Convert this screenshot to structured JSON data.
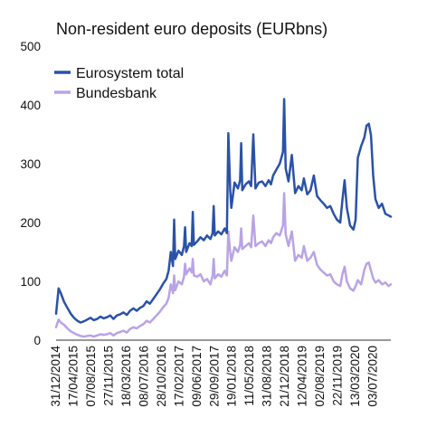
{
  "chart_data": {
    "type": "line",
    "title": "Non-resident euro deposits (EURbns)",
    "xlabel": "",
    "ylabel": "",
    "ylim": [
      0,
      500
    ],
    "yticks": [
      0,
      100,
      200,
      300,
      400,
      500
    ],
    "grid": false,
    "legend_position": "top-left",
    "xtick_labels": [
      "31/12/2014",
      "17/04/2015",
      "07/08/2015",
      "27/11/2015",
      "18/03/2016",
      "08/07/2016",
      "28/10/2016",
      "17/02/2017",
      "09/06/2017",
      "29/09/2017",
      "19/01/2018",
      "11/05/2018",
      "31/08/2018",
      "21/12/2018",
      "12/04/2019",
      "02/08/2019",
      "22/11/2019",
      "13/03/2020",
      "03/07/2020"
    ],
    "x_range": [
      "2014-12-31",
      "2020-10-30"
    ],
    "series": [
      {
        "name": "Eurosystem total",
        "color": "#2a52a8",
        "points": [
          [
            "2014-12-31",
            45
          ],
          [
            "2015-01-16",
            88
          ],
          [
            "2015-01-30",
            80
          ],
          [
            "2015-02-20",
            65
          ],
          [
            "2015-03-13",
            55
          ],
          [
            "2015-04-03",
            45
          ],
          [
            "2015-04-24",
            38
          ],
          [
            "2015-05-15",
            33
          ],
          [
            "2015-06-05",
            30
          ],
          [
            "2015-06-26",
            32
          ],
          [
            "2015-07-17",
            35
          ],
          [
            "2015-08-07",
            38
          ],
          [
            "2015-08-28",
            34
          ],
          [
            "2015-09-18",
            36
          ],
          [
            "2015-10-09",
            40
          ],
          [
            "2015-10-30",
            37
          ],
          [
            "2015-11-20",
            39
          ],
          [
            "2015-12-11",
            42
          ],
          [
            "2015-12-31",
            36
          ],
          [
            "2016-01-22",
            42
          ],
          [
            "2016-02-12",
            44
          ],
          [
            "2016-03-04",
            47
          ],
          [
            "2016-03-25",
            43
          ],
          [
            "2016-04-15",
            50
          ],
          [
            "2016-05-06",
            54
          ],
          [
            "2016-05-27",
            50
          ],
          [
            "2016-06-17",
            55
          ],
          [
            "2016-07-08",
            58
          ],
          [
            "2016-07-29",
            66
          ],
          [
            "2016-08-19",
            62
          ],
          [
            "2016-09-09",
            70
          ],
          [
            "2016-09-30",
            78
          ],
          [
            "2016-10-21",
            86
          ],
          [
            "2016-11-11",
            96
          ],
          [
            "2016-12-02",
            104
          ],
          [
            "2016-12-16",
            118
          ],
          [
            "2016-12-30",
            150
          ],
          [
            "2017-01-13",
            126
          ],
          [
            "2017-01-20",
            205
          ],
          [
            "2017-01-27",
            138
          ],
          [
            "2017-02-17",
            152
          ],
          [
            "2017-03-10",
            145
          ],
          [
            "2017-03-24",
            160
          ],
          [
            "2017-03-31",
            192
          ],
          [
            "2017-04-07",
            150
          ],
          [
            "2017-04-28",
            165
          ],
          [
            "2017-05-12",
            160
          ],
          [
            "2017-05-19",
            218
          ],
          [
            "2017-05-26",
            162
          ],
          [
            "2017-06-16",
            168
          ],
          [
            "2017-07-07",
            175
          ],
          [
            "2017-07-28",
            170
          ],
          [
            "2017-08-18",
            178
          ],
          [
            "2017-09-08",
            172
          ],
          [
            "2017-09-22",
            182
          ],
          [
            "2017-09-29",
            228
          ],
          [
            "2017-10-06",
            178
          ],
          [
            "2017-10-27",
            185
          ],
          [
            "2017-11-17",
            180
          ],
          [
            "2017-12-08",
            190
          ],
          [
            "2017-12-22",
            182
          ],
          [
            "2017-12-31",
            352
          ],
          [
            "2018-01-12",
            255
          ],
          [
            "2018-01-19",
            225
          ],
          [
            "2018-02-09",
            268
          ],
          [
            "2018-03-02",
            258
          ],
          [
            "2018-03-16",
            272
          ],
          [
            "2018-03-23",
            335
          ],
          [
            "2018-03-30",
            255
          ],
          [
            "2018-04-20",
            265
          ],
          [
            "2018-05-11",
            270
          ],
          [
            "2018-05-25",
            262
          ],
          [
            "2018-06-08",
            350
          ],
          [
            "2018-06-22",
            258
          ],
          [
            "2018-07-13",
            268
          ],
          [
            "2018-08-03",
            270
          ],
          [
            "2018-08-24",
            262
          ],
          [
            "2018-09-14",
            272
          ],
          [
            "2018-09-28",
            265
          ],
          [
            "2018-10-12",
            280
          ],
          [
            "2018-11-02",
            290
          ],
          [
            "2018-11-23",
            300
          ],
          [
            "2018-12-14",
            320
          ],
          [
            "2018-12-21",
            410
          ],
          [
            "2018-12-31",
            292
          ],
          [
            "2019-01-18",
            270
          ],
          [
            "2019-02-08",
            315
          ],
          [
            "2019-03-01",
            250
          ],
          [
            "2019-03-22",
            262
          ],
          [
            "2019-04-12",
            255
          ],
          [
            "2019-04-26",
            275
          ],
          [
            "2019-05-17",
            248
          ],
          [
            "2019-06-07",
            255
          ],
          [
            "2019-06-28",
            280
          ],
          [
            "2019-07-19",
            245
          ],
          [
            "2019-08-09",
            238
          ],
          [
            "2019-08-30",
            232
          ],
          [
            "2019-09-20",
            225
          ],
          [
            "2019-10-11",
            228
          ],
          [
            "2019-11-01",
            215
          ],
          [
            "2019-11-22",
            205
          ],
          [
            "2019-12-13",
            200
          ],
          [
            "2019-12-27",
            238
          ],
          [
            "2020-01-10",
            272
          ],
          [
            "2020-01-24",
            225
          ],
          [
            "2020-02-14",
            195
          ],
          [
            "2020-03-06",
            188
          ],
          [
            "2020-03-20",
            205
          ],
          [
            "2020-04-03",
            310
          ],
          [
            "2020-04-24",
            330
          ],
          [
            "2020-05-15",
            345
          ],
          [
            "2020-05-29",
            365
          ],
          [
            "2020-06-12",
            368
          ],
          [
            "2020-06-26",
            348
          ],
          [
            "2020-07-10",
            280
          ],
          [
            "2020-07-24",
            240
          ],
          [
            "2020-08-14",
            225
          ],
          [
            "2020-09-04",
            232
          ],
          [
            "2020-09-25",
            215
          ],
          [
            "2020-10-16",
            212
          ],
          [
            "2020-10-30",
            210
          ]
        ]
      },
      {
        "name": "Bundesbank",
        "color": "#b9a3e6",
        "points": [
          [
            "2014-12-31",
            22
          ],
          [
            "2015-01-16",
            35
          ],
          [
            "2015-01-30",
            30
          ],
          [
            "2015-02-20",
            26
          ],
          [
            "2015-03-13",
            20
          ],
          [
            "2015-04-03",
            15
          ],
          [
            "2015-04-24",
            12
          ],
          [
            "2015-05-15",
            9
          ],
          [
            "2015-06-05",
            7
          ],
          [
            "2015-06-26",
            6
          ],
          [
            "2015-07-17",
            7
          ],
          [
            "2015-08-07",
            8
          ],
          [
            "2015-08-28",
            6
          ],
          [
            "2015-09-18",
            8
          ],
          [
            "2015-10-09",
            10
          ],
          [
            "2015-10-30",
            9
          ],
          [
            "2015-11-20",
            10
          ],
          [
            "2015-12-11",
            12
          ],
          [
            "2015-12-31",
            8
          ],
          [
            "2016-01-22",
            12
          ],
          [
            "2016-02-12",
            14
          ],
          [
            "2016-03-04",
            16
          ],
          [
            "2016-03-25",
            13
          ],
          [
            "2016-04-15",
            19
          ],
          [
            "2016-05-06",
            22
          ],
          [
            "2016-05-27",
            20
          ],
          [
            "2016-06-17",
            24
          ],
          [
            "2016-07-08",
            27
          ],
          [
            "2016-07-29",
            33
          ],
          [
            "2016-08-19",
            30
          ],
          [
            "2016-09-09",
            36
          ],
          [
            "2016-09-30",
            42
          ],
          [
            "2016-10-21",
            48
          ],
          [
            "2016-11-11",
            56
          ],
          [
            "2016-12-02",
            62
          ],
          [
            "2016-12-16",
            72
          ],
          [
            "2016-12-30",
            95
          ],
          [
            "2017-01-13",
            80
          ],
          [
            "2017-01-20",
            110
          ],
          [
            "2017-01-27",
            85
          ],
          [
            "2017-02-17",
            100
          ],
          [
            "2017-03-10",
            95
          ],
          [
            "2017-03-24",
            108
          ],
          [
            "2017-03-31",
            130
          ],
          [
            "2017-04-07",
            112
          ],
          [
            "2017-04-28",
            122
          ],
          [
            "2017-05-12",
            115
          ],
          [
            "2017-05-19",
            138
          ],
          [
            "2017-05-26",
            110
          ],
          [
            "2017-06-16",
            108
          ],
          [
            "2017-07-07",
            112
          ],
          [
            "2017-07-28",
            100
          ],
          [
            "2017-08-18",
            104
          ],
          [
            "2017-09-08",
            95
          ],
          [
            "2017-09-22",
            110
          ],
          [
            "2017-09-29",
            138
          ],
          [
            "2017-10-06",
            105
          ],
          [
            "2017-10-27",
            112
          ],
          [
            "2017-11-17",
            108
          ],
          [
            "2017-12-08",
            118
          ],
          [
            "2017-12-22",
            110
          ],
          [
            "2017-12-31",
            185
          ],
          [
            "2018-01-12",
            150
          ],
          [
            "2018-01-19",
            135
          ],
          [
            "2018-02-09",
            158
          ],
          [
            "2018-03-02",
            150
          ],
          [
            "2018-03-16",
            162
          ],
          [
            "2018-03-23",
            190
          ],
          [
            "2018-03-30",
            155
          ],
          [
            "2018-04-20",
            160
          ],
          [
            "2018-05-11",
            165
          ],
          [
            "2018-05-25",
            158
          ],
          [
            "2018-06-08",
            212
          ],
          [
            "2018-06-22",
            160
          ],
          [
            "2018-07-13",
            165
          ],
          [
            "2018-08-03",
            168
          ],
          [
            "2018-08-24",
            160
          ],
          [
            "2018-09-14",
            170
          ],
          [
            "2018-09-28",
            165
          ],
          [
            "2018-10-12",
            175
          ],
          [
            "2018-11-02",
            182
          ],
          [
            "2018-11-23",
            178
          ],
          [
            "2018-12-14",
            195
          ],
          [
            "2018-12-21",
            250
          ],
          [
            "2018-12-31",
            180
          ],
          [
            "2019-01-18",
            160
          ],
          [
            "2019-02-08",
            185
          ],
          [
            "2019-03-01",
            135
          ],
          [
            "2019-03-22",
            145
          ],
          [
            "2019-04-12",
            140
          ],
          [
            "2019-04-26",
            160
          ],
          [
            "2019-05-17",
            135
          ],
          [
            "2019-06-07",
            140
          ],
          [
            "2019-06-28",
            150
          ],
          [
            "2019-07-19",
            128
          ],
          [
            "2019-08-09",
            120
          ],
          [
            "2019-08-30",
            115
          ],
          [
            "2019-09-20",
            110
          ],
          [
            "2019-10-11",
            112
          ],
          [
            "2019-11-01",
            100
          ],
          [
            "2019-11-22",
            95
          ],
          [
            "2019-12-13",
            92
          ],
          [
            "2019-12-27",
            112
          ],
          [
            "2020-01-10",
            125
          ],
          [
            "2020-01-24",
            100
          ],
          [
            "2020-02-14",
            88
          ],
          [
            "2020-03-06",
            84
          ],
          [
            "2020-03-20",
            92
          ],
          [
            "2020-04-03",
            102
          ],
          [
            "2020-04-24",
            95
          ],
          [
            "2020-05-15",
            120
          ],
          [
            "2020-05-29",
            130
          ],
          [
            "2020-06-12",
            132
          ],
          [
            "2020-06-26",
            118
          ],
          [
            "2020-07-10",
            105
          ],
          [
            "2020-07-24",
            98
          ],
          [
            "2020-08-14",
            102
          ],
          [
            "2020-09-04",
            95
          ],
          [
            "2020-09-25",
            98
          ],
          [
            "2020-10-16",
            92
          ],
          [
            "2020-10-30",
            95
          ]
        ]
      }
    ]
  }
}
